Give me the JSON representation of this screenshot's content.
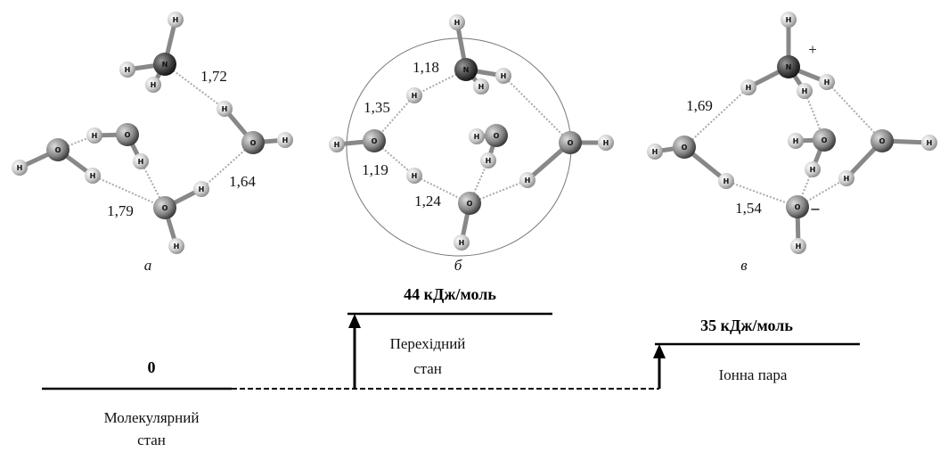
{
  "panels": [
    {
      "label": "а",
      "atoms": [
        "H",
        "N",
        "H",
        "H",
        "H",
        "O",
        "H",
        "O",
        "H",
        "H",
        "O",
        "H",
        "H",
        "O",
        "H",
        "H"
      ],
      "distances": [
        "1,72",
        "1,64",
        "1,79"
      ]
    },
    {
      "label": "б",
      "atoms": [
        "H",
        "N",
        "H",
        "H",
        "H",
        "O",
        "H",
        "H",
        "O",
        "H",
        "H",
        "O",
        "H",
        "O",
        "H",
        "H"
      ],
      "distances": [
        "1,18",
        "1,35",
        "1,19",
        "1,24"
      ]
    },
    {
      "label": "в",
      "atoms": [
        "H",
        "N",
        "H",
        "H",
        "H",
        "O",
        "H",
        "H",
        "O",
        "H",
        "H",
        "O",
        "H",
        "O",
        "H",
        "H"
      ],
      "distances": [
        "1,69",
        "1,54"
      ],
      "charges": [
        "+",
        "–"
      ]
    }
  ],
  "energy": {
    "levels": [
      {
        "value": "0",
        "name": [
          "Молекулярний",
          "стан"
        ]
      },
      {
        "value": "44 кДж/моль",
        "name": [
          "Перехідний",
          "стан"
        ]
      },
      {
        "value": "35 кДж/моль",
        "name": [
          "Іонна пара"
        ]
      }
    ]
  }
}
